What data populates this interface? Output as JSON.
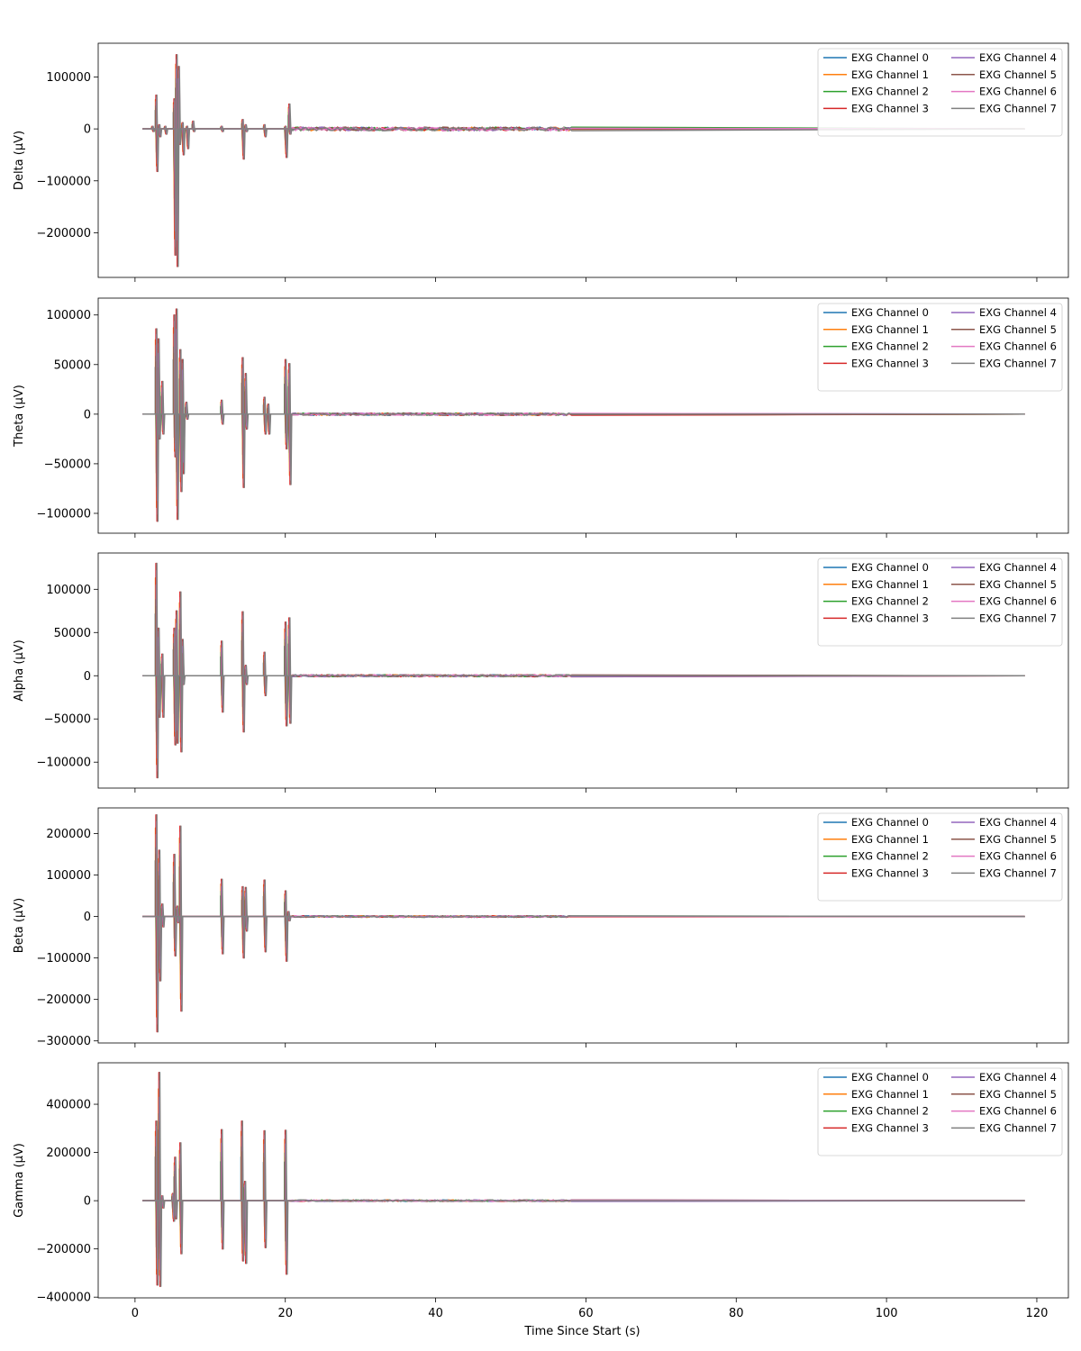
{
  "figure": {
    "xlabel": "Time Since Start (s)",
    "x_ticks": [
      0,
      20,
      40,
      60,
      80,
      100,
      120
    ],
    "x_tick_labels": [
      "0",
      "20",
      "40",
      "60",
      "80",
      "100",
      "120"
    ],
    "xlim": [
      -4.9,
      124.2
    ]
  },
  "legend": {
    "placement": "upper right",
    "columns": 2,
    "entries": [
      "EXG Channel 0",
      "EXG Channel 1",
      "EXG Channel 2",
      "EXG Channel 3",
      "EXG Channel 4",
      "EXG Channel 5",
      "EXG Channel 6",
      "EXG Channel 7"
    ]
  },
  "colors": {
    "series": [
      "#1f77b4",
      "#ff7f0e",
      "#2ca02c",
      "#d62728",
      "#9467bd",
      "#8c564b",
      "#e377c2",
      "#7f7f7f"
    ],
    "axes": "#000000",
    "legend_border": "#cccccc"
  },
  "chart_data": [
    {
      "type": "line",
      "title": "",
      "xlabel": "",
      "ylabel": "Delta (µV)",
      "xlim": [
        -4.9,
        124.2
      ],
      "ylim": [
        -286000,
        165000
      ],
      "grid": false,
      "legend": "top-right",
      "y_ticks": [
        -200000,
        -100000,
        0,
        100000
      ],
      "y_tick_labels": [
        "−200000",
        "−100000",
        "0",
        "100000"
      ],
      "series_names": [
        "EXG Channel 0",
        "EXG Channel 1",
        "EXG Channel 2",
        "EXG Channel 3",
        "EXG Channel 4",
        "EXG Channel 5",
        "EXG Channel 6",
        "EXG Channel 7"
      ],
      "x_start": 1.0,
      "x_end": 118.4,
      "bursts": [
        {
          "x": 2.3,
          "y": [
            -5000,
            5000
          ]
        },
        {
          "x": 2.8,
          "y": [
            -82000,
            65000
          ]
        },
        {
          "x": 3.2,
          "y": [
            -15000,
            8000
          ]
        },
        {
          "x": 4.0,
          "y": [
            -10000,
            5000
          ]
        },
        {
          "x": 5.2,
          "y": [
            -243000,
            58000
          ]
        },
        {
          "x": 5.5,
          "y": [
            -265000,
            143000
          ]
        },
        {
          "x": 5.8,
          "y": [
            -30000,
            120000
          ]
        },
        {
          "x": 6.3,
          "y": [
            -50000,
            12000
          ]
        },
        {
          "x": 6.9,
          "y": [
            -38000,
            5000
          ]
        },
        {
          "x": 7.7,
          "y": [
            -5000,
            15000
          ]
        },
        {
          "x": 11.5,
          "y": [
            -5000,
            5000
          ]
        },
        {
          "x": 14.3,
          "y": [
            -58000,
            18000
          ]
        },
        {
          "x": 14.7,
          "y": [
            -5000,
            8000
          ]
        },
        {
          "x": 17.2,
          "y": [
            -15000,
            8000
          ]
        },
        {
          "x": 20.0,
          "y": [
            -55000,
            5000
          ]
        },
        {
          "x": 20.5,
          "y": [
            -10000,
            48000
          ]
        }
      ],
      "noise": {
        "x_end": 58.3,
        "amplitude": 3500
      }
    },
    {
      "type": "line",
      "title": "",
      "xlabel": "",
      "ylabel": "Theta (µV)",
      "xlim": [
        -4.9,
        124.2
      ],
      "ylim": [
        -120000,
        117000
      ],
      "grid": false,
      "legend": "top-right",
      "y_ticks": [
        -100000,
        -50000,
        0,
        50000,
        100000
      ],
      "y_tick_labels": [
        "−100000",
        "−50000",
        "0",
        "50000",
        "100000"
      ],
      "series_names": [
        "EXG Channel 0",
        "EXG Channel 1",
        "EXG Channel 2",
        "EXG Channel 3",
        "EXG Channel 4",
        "EXG Channel 5",
        "EXG Channel 6",
        "EXG Channel 7"
      ],
      "x_start": 1.0,
      "x_end": 118.4,
      "bursts": [
        {
          "x": 2.8,
          "y": [
            -108000,
            86000
          ]
        },
        {
          "x": 3.1,
          "y": [
            -25000,
            76000
          ]
        },
        {
          "x": 3.6,
          "y": [
            -20000,
            33000
          ]
        },
        {
          "x": 5.2,
          "y": [
            -43000,
            100000
          ]
        },
        {
          "x": 5.5,
          "y": [
            -106000,
            106000
          ]
        },
        {
          "x": 6.0,
          "y": [
            -78000,
            65000
          ]
        },
        {
          "x": 6.3,
          "y": [
            -60000,
            55000
          ]
        },
        {
          "x": 6.8,
          "y": [
            -5000,
            12000
          ]
        },
        {
          "x": 11.5,
          "y": [
            -10000,
            14000
          ]
        },
        {
          "x": 14.3,
          "y": [
            -74000,
            57000
          ]
        },
        {
          "x": 14.7,
          "y": [
            -15000,
            41000
          ]
        },
        {
          "x": 17.2,
          "y": [
            -20000,
            17000
          ]
        },
        {
          "x": 17.7,
          "y": [
            -20000,
            10000
          ]
        },
        {
          "x": 20.0,
          "y": [
            -35000,
            55000
          ]
        },
        {
          "x": 20.5,
          "y": [
            -71000,
            51000
          ]
        }
      ],
      "noise": {
        "x_end": 58.3,
        "amplitude": 1200
      }
    },
    {
      "type": "line",
      "title": "",
      "xlabel": "",
      "ylabel": "Alpha (µV)",
      "xlim": [
        -4.9,
        124.2
      ],
      "ylim": [
        -130000,
        142000
      ],
      "grid": false,
      "legend": "top-right",
      "y_ticks": [
        -100000,
        -50000,
        0,
        50000,
        100000
      ],
      "y_tick_labels": [
        "−100000",
        "−50000",
        "0",
        "50000",
        "100000"
      ],
      "series_names": [
        "EXG Channel 0",
        "EXG Channel 1",
        "EXG Channel 2",
        "EXG Channel 3",
        "EXG Channel 4",
        "EXG Channel 5",
        "EXG Channel 6",
        "EXG Channel 7"
      ],
      "x_start": 1.0,
      "x_end": 118.4,
      "bursts": [
        {
          "x": 2.8,
          "y": [
            -118000,
            130000
          ]
        },
        {
          "x": 3.1,
          "y": [
            -48000,
            55000
          ]
        },
        {
          "x": 3.6,
          "y": [
            -48000,
            25000
          ]
        },
        {
          "x": 5.2,
          "y": [
            -80000,
            55000
          ]
        },
        {
          "x": 5.5,
          "y": [
            -78000,
            75000
          ]
        },
        {
          "x": 6.0,
          "y": [
            -88000,
            97000
          ]
        },
        {
          "x": 6.3,
          "y": [
            -10000,
            42000
          ]
        },
        {
          "x": 11.5,
          "y": [
            -42000,
            40000
          ]
        },
        {
          "x": 14.3,
          "y": [
            -65000,
            74000
          ]
        },
        {
          "x": 14.7,
          "y": [
            -10000,
            12000
          ]
        },
        {
          "x": 17.2,
          "y": [
            -23000,
            27000
          ]
        },
        {
          "x": 20.0,
          "y": [
            -58000,
            62000
          ]
        },
        {
          "x": 20.5,
          "y": [
            -55000,
            67000
          ]
        }
      ],
      "noise": {
        "x_end": 58.3,
        "amplitude": 1200
      }
    },
    {
      "type": "line",
      "title": "",
      "xlabel": "",
      "ylabel": "Beta (µV)",
      "xlim": [
        -4.9,
        124.2
      ],
      "ylim": [
        -305000,
        262000
      ],
      "grid": false,
      "legend": "top-right",
      "y_ticks": [
        -300000,
        -200000,
        -100000,
        0,
        100000,
        200000
      ],
      "y_tick_labels": [
        "−300000",
        "−200000",
        "−100000",
        "0",
        "100000",
        "200000"
      ],
      "series_names": [
        "EXG Channel 0",
        "EXG Channel 1",
        "EXG Channel 2",
        "EXG Channel 3",
        "EXG Channel 4",
        "EXG Channel 5",
        "EXG Channel 6",
        "EXG Channel 7"
      ],
      "x_start": 1.0,
      "x_end": 118.4,
      "bursts": [
        {
          "x": 2.8,
          "y": [
            -278000,
            245000
          ]
        },
        {
          "x": 3.2,
          "y": [
            -155000,
            160000
          ]
        },
        {
          "x": 3.6,
          "y": [
            -25000,
            30000
          ]
        },
        {
          "x": 5.2,
          "y": [
            -95000,
            150000
          ]
        },
        {
          "x": 5.6,
          "y": [
            -15000,
            25000
          ]
        },
        {
          "x": 6.0,
          "y": [
            -228000,
            218000
          ]
        },
        {
          "x": 11.5,
          "y": [
            -90000,
            90000
          ]
        },
        {
          "x": 14.3,
          "y": [
            -100000,
            72000
          ]
        },
        {
          "x": 14.7,
          "y": [
            -35000,
            70000
          ]
        },
        {
          "x": 17.2,
          "y": [
            -85000,
            88000
          ]
        },
        {
          "x": 20.0,
          "y": [
            -108000,
            62000
          ]
        },
        {
          "x": 20.4,
          "y": [
            -10000,
            12000
          ]
        }
      ],
      "noise": {
        "x_end": 58.3,
        "amplitude": 2000
      }
    },
    {
      "type": "line",
      "title": "",
      "xlabel": "Time Since Start (s)",
      "ylabel": "Gamma (µV)",
      "xlim": [
        -4.9,
        124.2
      ],
      "ylim": [
        -403000,
        572000
      ],
      "grid": false,
      "legend": "top-right",
      "y_ticks": [
        -400000,
        -200000,
        0,
        200000,
        400000
      ],
      "y_tick_labels": [
        "−400000",
        "−200000",
        "0",
        "200000",
        "400000"
      ],
      "series_names": [
        "EXG Channel 0",
        "EXG Channel 1",
        "EXG Channel 2",
        "EXG Channel 3",
        "EXG Channel 4",
        "EXG Channel 5",
        "EXG Channel 6",
        "EXG Channel 7"
      ],
      "x_start": 1.0,
      "x_end": 118.4,
      "bursts": [
        {
          "x": 2.8,
          "y": [
            -350000,
            330000
          ]
        },
        {
          "x": 3.2,
          "y": [
            -355000,
            532000
          ]
        },
        {
          "x": 3.6,
          "y": [
            -30000,
            20000
          ]
        },
        {
          "x": 5.0,
          "y": [
            -85000,
            30000
          ]
        },
        {
          "x": 5.3,
          "y": [
            -75000,
            180000
          ]
        },
        {
          "x": 6.0,
          "y": [
            -220000,
            240000
          ]
        },
        {
          "x": 11.5,
          "y": [
            -200000,
            295000
          ]
        },
        {
          "x": 14.2,
          "y": [
            -250000,
            330000
          ]
        },
        {
          "x": 14.6,
          "y": [
            -260000,
            80000
          ]
        },
        {
          "x": 17.2,
          "y": [
            -195000,
            290000
          ]
        },
        {
          "x": 20.0,
          "y": [
            -305000,
            292000
          ]
        }
      ],
      "noise": {
        "x_end": 58.3,
        "amplitude": 3000
      }
    }
  ]
}
